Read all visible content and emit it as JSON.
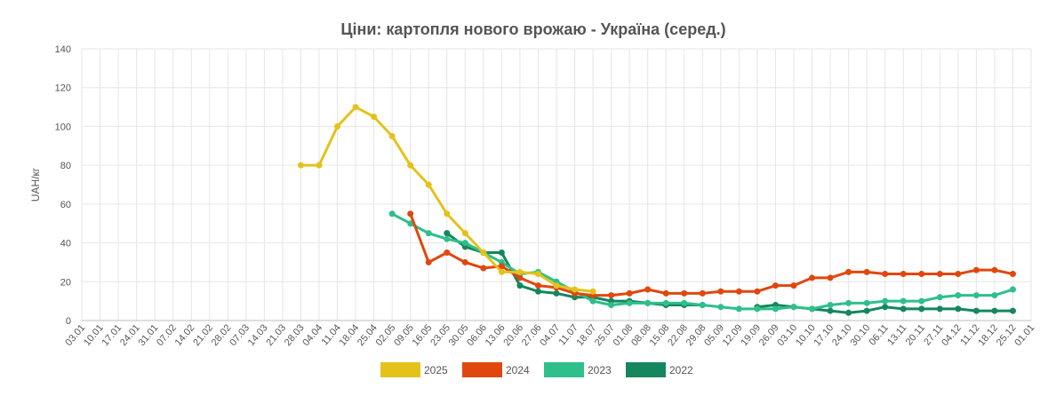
{
  "chart_data": {
    "type": "line",
    "title": "Ціни: картопля нового врожаю - Україна (серед.)",
    "xlabel": "",
    "ylabel": "UAH/кг",
    "ylim": [
      0,
      140
    ],
    "yticks": [
      0,
      20,
      40,
      60,
      80,
      100,
      120,
      140
    ],
    "categories": [
      "03.01",
      "10.01",
      "17.01",
      "24.01",
      "31.01",
      "07.02",
      "14.02",
      "21.02",
      "28.02",
      "07.03",
      "14.03",
      "21.03",
      "28.03",
      "04.04",
      "11.04",
      "18.04",
      "25.04",
      "02.05",
      "09.05",
      "16.05",
      "23.05",
      "30.05",
      "06.06",
      "13.06",
      "20.06",
      "27.06",
      "04.07",
      "11.07",
      "18.07",
      "25.07",
      "01.08",
      "08.08",
      "15.08",
      "22.08",
      "29.08",
      "05.09",
      "12.09",
      "19.09",
      "26.09",
      "03.10",
      "10.10",
      "17.10",
      "24.10",
      "30.10",
      "06.11",
      "13.11",
      "20.11",
      "27.11",
      "04.12",
      "11.12",
      "18.12",
      "25.12",
      "01.01"
    ],
    "grid": true,
    "legend": "bottom",
    "series": [
      {
        "name": "2025",
        "color": "#e5c21b",
        "values": [
          null,
          null,
          null,
          null,
          null,
          null,
          null,
          null,
          null,
          null,
          null,
          null,
          80,
          80,
          100,
          110,
          105,
          95,
          80,
          70,
          55,
          45,
          35,
          25,
          25,
          24,
          18,
          16,
          15,
          null,
          null,
          null,
          null,
          null,
          null,
          null,
          null,
          null,
          null,
          null,
          null,
          null,
          null,
          null,
          null,
          null,
          null,
          null,
          null,
          null,
          null,
          null,
          null
        ]
      },
      {
        "name": "2024",
        "color": "#e0470e",
        "values": [
          null,
          null,
          null,
          null,
          null,
          null,
          null,
          null,
          null,
          null,
          null,
          null,
          null,
          null,
          null,
          null,
          null,
          null,
          55,
          30,
          35,
          30,
          27,
          28,
          22,
          18,
          17,
          14,
          13,
          13,
          14,
          16,
          14,
          14,
          14,
          15,
          15,
          15,
          18,
          18,
          22,
          22,
          25,
          25,
          24,
          24,
          24,
          24,
          24,
          26,
          26,
          24,
          null
        ]
      },
      {
        "name": "2023",
        "color": "#2ebf8a",
        "values": [
          null,
          null,
          null,
          null,
          null,
          null,
          null,
          null,
          null,
          null,
          null,
          null,
          null,
          null,
          null,
          null,
          null,
          55,
          50,
          45,
          42,
          40,
          35,
          30,
          24,
          25,
          20,
          15,
          10,
          8,
          9,
          9,
          9,
          9,
          8,
          7,
          6,
          6,
          6,
          7,
          6,
          8,
          9,
          9,
          10,
          10,
          10,
          12,
          13,
          13,
          13,
          16,
          null
        ]
      },
      {
        "name": "2022",
        "color": "#15865d",
        "values": [
          null,
          null,
          null,
          null,
          null,
          null,
          null,
          null,
          null,
          null,
          null,
          null,
          null,
          null,
          null,
          null,
          null,
          null,
          null,
          null,
          45,
          38,
          35,
          35,
          18,
          15,
          14,
          12,
          12,
          10,
          10,
          9,
          8,
          8,
          8,
          null,
          null,
          7,
          8,
          7,
          6,
          5,
          4,
          5,
          7,
          6,
          6,
          6,
          6,
          5,
          5,
          5,
          null
        ]
      }
    ]
  }
}
